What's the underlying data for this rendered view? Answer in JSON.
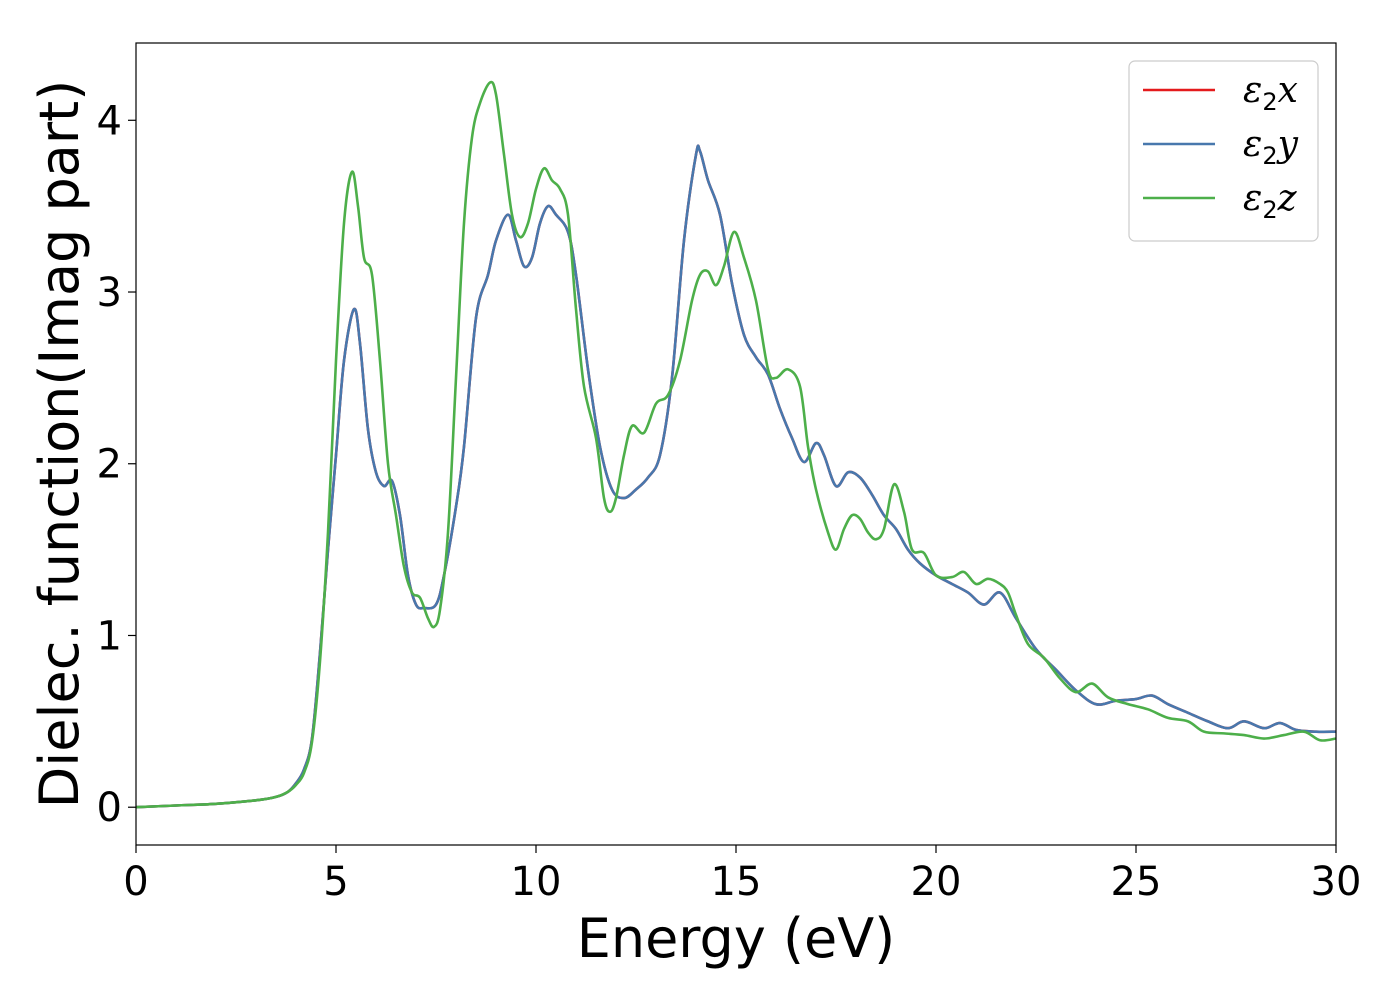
{
  "chart_data": {
    "type": "line",
    "xlabel": "Energy (eV)",
    "ylabel": "Dielec. function(Imag part)",
    "xlim": [
      0,
      30
    ],
    "ylim": [
      -0.22,
      4.45
    ],
    "xticks": [
      0,
      5,
      10,
      15,
      20,
      25,
      30
    ],
    "yticks": [
      0,
      1,
      2,
      3,
      4
    ],
    "grid": false,
    "legend_position": "top-right",
    "series": [
      {
        "name": "ε2x",
        "legend": {
          "base": "ε",
          "sub": "2",
          "var": "x"
        },
        "color": "#e41a1c",
        "points": [
          [
            0,
            0
          ],
          [
            1,
            0.01
          ],
          [
            2,
            0.02
          ],
          [
            3,
            0.04
          ],
          [
            3.5,
            0.06
          ],
          [
            3.8,
            0.09
          ],
          [
            4,
            0.14
          ],
          [
            4.2,
            0.22
          ],
          [
            4.4,
            0.4
          ],
          [
            4.6,
            0.9
          ],
          [
            4.8,
            1.5
          ],
          [
            5,
            2.05
          ],
          [
            5.2,
            2.6
          ],
          [
            5.45,
            2.9
          ],
          [
            5.6,
            2.7
          ],
          [
            5.8,
            2.2
          ],
          [
            6,
            1.95
          ],
          [
            6.2,
            1.87
          ],
          [
            6.4,
            1.9
          ],
          [
            6.6,
            1.7
          ],
          [
            6.8,
            1.35
          ],
          [
            7,
            1.18
          ],
          [
            7.2,
            1.16
          ],
          [
            7.5,
            1.18
          ],
          [
            7.7,
            1.35
          ],
          [
            8,
            1.75
          ],
          [
            8.2,
            2.1
          ],
          [
            8.5,
            2.85
          ],
          [
            8.8,
            3.1
          ],
          [
            9,
            3.3
          ],
          [
            9.3,
            3.45
          ],
          [
            9.5,
            3.3
          ],
          [
            9.7,
            3.15
          ],
          [
            9.9,
            3.2
          ],
          [
            10.1,
            3.4
          ],
          [
            10.3,
            3.5
          ],
          [
            10.5,
            3.45
          ],
          [
            10.8,
            3.35
          ],
          [
            11,
            3.1
          ],
          [
            11.3,
            2.55
          ],
          [
            11.6,
            2.1
          ],
          [
            11.9,
            1.85
          ],
          [
            12.2,
            1.8
          ],
          [
            12.5,
            1.85
          ],
          [
            12.8,
            1.92
          ],
          [
            13.1,
            2.05
          ],
          [
            13.4,
            2.5
          ],
          [
            13.7,
            3.3
          ],
          [
            14,
            3.8
          ],
          [
            14.1,
            3.82
          ],
          [
            14.3,
            3.65
          ],
          [
            14.6,
            3.45
          ],
          [
            14.9,
            3.05
          ],
          [
            15.2,
            2.75
          ],
          [
            15.5,
            2.62
          ],
          [
            15.8,
            2.52
          ],
          [
            16.1,
            2.32
          ],
          [
            16.4,
            2.15
          ],
          [
            16.7,
            2.01
          ],
          [
            17,
            2.12
          ],
          [
            17.2,
            2.05
          ],
          [
            17.5,
            1.87
          ],
          [
            17.8,
            1.95
          ],
          [
            18.1,
            1.92
          ],
          [
            18.4,
            1.82
          ],
          [
            18.7,
            1.7
          ],
          [
            19,
            1.62
          ],
          [
            19.3,
            1.5
          ],
          [
            19.6,
            1.42
          ],
          [
            20,
            1.35
          ],
          [
            20.4,
            1.3
          ],
          [
            20.8,
            1.25
          ],
          [
            21.2,
            1.18
          ],
          [
            21.6,
            1.25
          ],
          [
            22,
            1.1
          ],
          [
            22.5,
            0.92
          ],
          [
            23,
            0.8
          ],
          [
            23.5,
            0.68
          ],
          [
            24,
            0.6
          ],
          [
            24.5,
            0.62
          ],
          [
            25,
            0.63
          ],
          [
            25.4,
            0.65
          ],
          [
            25.8,
            0.6
          ],
          [
            26.3,
            0.55
          ],
          [
            26.8,
            0.5
          ],
          [
            27.3,
            0.46
          ],
          [
            27.7,
            0.5
          ],
          [
            28.2,
            0.46
          ],
          [
            28.6,
            0.49
          ],
          [
            29,
            0.45
          ],
          [
            29.5,
            0.44
          ],
          [
            30,
            0.44
          ]
        ]
      },
      {
        "name": "ε2y",
        "legend": {
          "base": "ε",
          "sub": "2",
          "var": "y"
        },
        "color": "#4878ad",
        "points": [
          [
            0,
            0
          ],
          [
            1,
            0.01
          ],
          [
            2,
            0.02
          ],
          [
            3,
            0.04
          ],
          [
            3.5,
            0.06
          ],
          [
            3.8,
            0.09
          ],
          [
            4,
            0.14
          ],
          [
            4.2,
            0.22
          ],
          [
            4.4,
            0.4
          ],
          [
            4.6,
            0.9
          ],
          [
            4.8,
            1.5
          ],
          [
            5,
            2.05
          ],
          [
            5.2,
            2.6
          ],
          [
            5.45,
            2.9
          ],
          [
            5.6,
            2.7
          ],
          [
            5.8,
            2.2
          ],
          [
            6,
            1.95
          ],
          [
            6.2,
            1.87
          ],
          [
            6.4,
            1.9
          ],
          [
            6.6,
            1.7
          ],
          [
            6.8,
            1.35
          ],
          [
            7,
            1.18
          ],
          [
            7.2,
            1.16
          ],
          [
            7.5,
            1.18
          ],
          [
            7.7,
            1.35
          ],
          [
            8,
            1.75
          ],
          [
            8.2,
            2.1
          ],
          [
            8.5,
            2.85
          ],
          [
            8.8,
            3.1
          ],
          [
            9,
            3.3
          ],
          [
            9.3,
            3.45
          ],
          [
            9.5,
            3.3
          ],
          [
            9.7,
            3.15
          ],
          [
            9.9,
            3.2
          ],
          [
            10.1,
            3.4
          ],
          [
            10.3,
            3.5
          ],
          [
            10.5,
            3.45
          ],
          [
            10.8,
            3.35
          ],
          [
            11,
            3.1
          ],
          [
            11.3,
            2.55
          ],
          [
            11.6,
            2.1
          ],
          [
            11.9,
            1.85
          ],
          [
            12.2,
            1.8
          ],
          [
            12.5,
            1.85
          ],
          [
            12.8,
            1.92
          ],
          [
            13.1,
            2.05
          ],
          [
            13.4,
            2.5
          ],
          [
            13.7,
            3.3
          ],
          [
            14,
            3.8
          ],
          [
            14.1,
            3.82
          ],
          [
            14.3,
            3.65
          ],
          [
            14.6,
            3.45
          ],
          [
            14.9,
            3.05
          ],
          [
            15.2,
            2.75
          ],
          [
            15.5,
            2.62
          ],
          [
            15.8,
            2.52
          ],
          [
            16.1,
            2.32
          ],
          [
            16.4,
            2.15
          ],
          [
            16.7,
            2.01
          ],
          [
            17,
            2.12
          ],
          [
            17.2,
            2.05
          ],
          [
            17.5,
            1.87
          ],
          [
            17.8,
            1.95
          ],
          [
            18.1,
            1.92
          ],
          [
            18.4,
            1.82
          ],
          [
            18.7,
            1.7
          ],
          [
            19,
            1.62
          ],
          [
            19.3,
            1.5
          ],
          [
            19.6,
            1.42
          ],
          [
            20,
            1.35
          ],
          [
            20.4,
            1.3
          ],
          [
            20.8,
            1.25
          ],
          [
            21.2,
            1.18
          ],
          [
            21.6,
            1.25
          ],
          [
            22,
            1.1
          ],
          [
            22.5,
            0.92
          ],
          [
            23,
            0.8
          ],
          [
            23.5,
            0.68
          ],
          [
            24,
            0.6
          ],
          [
            24.5,
            0.62
          ],
          [
            25,
            0.63
          ],
          [
            25.4,
            0.65
          ],
          [
            25.8,
            0.6
          ],
          [
            26.3,
            0.55
          ],
          [
            26.8,
            0.5
          ],
          [
            27.3,
            0.46
          ],
          [
            27.7,
            0.5
          ],
          [
            28.2,
            0.46
          ],
          [
            28.6,
            0.49
          ],
          [
            29,
            0.45
          ],
          [
            29.5,
            0.44
          ],
          [
            30,
            0.44
          ]
        ]
      },
      {
        "name": "ε2z",
        "legend": {
          "base": "ε",
          "sub": "2",
          "var": "z"
        },
        "color": "#4daf4a",
        "points": [
          [
            0,
            0
          ],
          [
            1,
            0.01
          ],
          [
            2,
            0.02
          ],
          [
            3,
            0.04
          ],
          [
            3.5,
            0.06
          ],
          [
            3.8,
            0.09
          ],
          [
            4,
            0.13
          ],
          [
            4.2,
            0.2
          ],
          [
            4.4,
            0.38
          ],
          [
            4.6,
            0.85
          ],
          [
            4.8,
            1.6
          ],
          [
            5,
            2.6
          ],
          [
            5.2,
            3.4
          ],
          [
            5.4,
            3.7
          ],
          [
            5.55,
            3.5
          ],
          [
            5.7,
            3.2
          ],
          [
            5.9,
            3.1
          ],
          [
            6.1,
            2.6
          ],
          [
            6.3,
            2.0
          ],
          [
            6.5,
            1.7
          ],
          [
            6.7,
            1.4
          ],
          [
            6.9,
            1.25
          ],
          [
            7.1,
            1.22
          ],
          [
            7.3,
            1.1
          ],
          [
            7.45,
            1.05
          ],
          [
            7.6,
            1.15
          ],
          [
            7.8,
            1.6
          ],
          [
            8,
            2.5
          ],
          [
            8.2,
            3.4
          ],
          [
            8.4,
            3.9
          ],
          [
            8.6,
            4.1
          ],
          [
            8.85,
            4.22
          ],
          [
            9,
            4.15
          ],
          [
            9.2,
            3.8
          ],
          [
            9.4,
            3.45
          ],
          [
            9.6,
            3.32
          ],
          [
            9.8,
            3.4
          ],
          [
            10,
            3.6
          ],
          [
            10.2,
            3.72
          ],
          [
            10.4,
            3.65
          ],
          [
            10.6,
            3.6
          ],
          [
            10.8,
            3.45
          ],
          [
            11,
            2.9
          ],
          [
            11.2,
            2.45
          ],
          [
            11.5,
            2.15
          ],
          [
            11.7,
            1.8
          ],
          [
            11.85,
            1.72
          ],
          [
            12,
            1.8
          ],
          [
            12.2,
            2.05
          ],
          [
            12.4,
            2.22
          ],
          [
            12.7,
            2.18
          ],
          [
            13,
            2.35
          ],
          [
            13.3,
            2.4
          ],
          [
            13.6,
            2.6
          ],
          [
            13.9,
            2.95
          ],
          [
            14.1,
            3.1
          ],
          [
            14.3,
            3.12
          ],
          [
            14.5,
            3.04
          ],
          [
            14.7,
            3.15
          ],
          [
            14.95,
            3.35
          ],
          [
            15.2,
            3.2
          ],
          [
            15.5,
            2.95
          ],
          [
            15.8,
            2.55
          ],
          [
            16,
            2.5
          ],
          [
            16.3,
            2.55
          ],
          [
            16.6,
            2.45
          ],
          [
            16.8,
            2.1
          ],
          [
            17,
            1.85
          ],
          [
            17.3,
            1.6
          ],
          [
            17.5,
            1.5
          ],
          [
            17.7,
            1.62
          ],
          [
            17.9,
            1.7
          ],
          [
            18.1,
            1.68
          ],
          [
            18.3,
            1.6
          ],
          [
            18.5,
            1.56
          ],
          [
            18.7,
            1.62
          ],
          [
            18.95,
            1.88
          ],
          [
            19.2,
            1.72
          ],
          [
            19.4,
            1.5
          ],
          [
            19.7,
            1.48
          ],
          [
            20,
            1.35
          ],
          [
            20.4,
            1.34
          ],
          [
            20.7,
            1.37
          ],
          [
            21,
            1.3
          ],
          [
            21.3,
            1.33
          ],
          [
            21.6,
            1.3
          ],
          [
            21.8,
            1.25
          ],
          [
            22,
            1.12
          ],
          [
            22.3,
            0.95
          ],
          [
            22.7,
            0.87
          ],
          [
            23.1,
            0.75
          ],
          [
            23.5,
            0.67
          ],
          [
            23.9,
            0.72
          ],
          [
            24.3,
            0.64
          ],
          [
            24.8,
            0.6
          ],
          [
            25.3,
            0.57
          ],
          [
            25.8,
            0.52
          ],
          [
            26.3,
            0.5
          ],
          [
            26.7,
            0.44
          ],
          [
            27.2,
            0.43
          ],
          [
            27.7,
            0.42
          ],
          [
            28.2,
            0.4
          ],
          [
            28.7,
            0.42
          ],
          [
            29.2,
            0.44
          ],
          [
            29.6,
            0.39
          ],
          [
            30,
            0.4
          ]
        ]
      }
    ]
  }
}
